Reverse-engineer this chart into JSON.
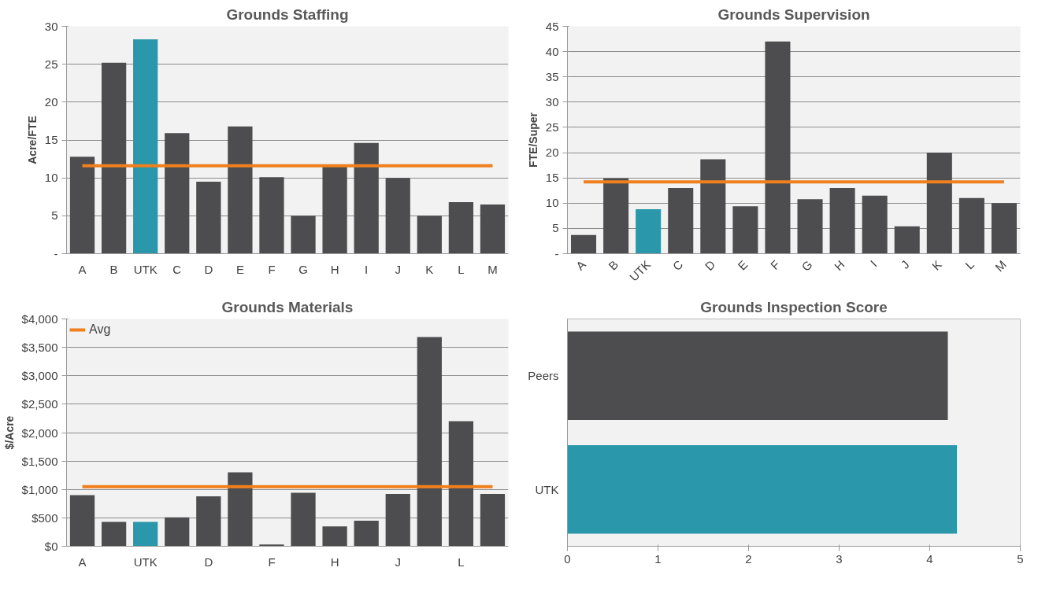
{
  "chart_data": [
    {
      "type": "bar",
      "title": "Grounds Staffing",
      "ylabel": "Acre/FTE",
      "categories": [
        "A",
        "B",
        "UTK",
        "C",
        "D",
        "E",
        "F",
        "G",
        "H",
        "I",
        "J",
        "K",
        "L",
        "M"
      ],
      "values": [
        12.8,
        25.2,
        28.3,
        15.9,
        9.5,
        16.8,
        10.1,
        5,
        11.5,
        14.6,
        10,
        5,
        6.8,
        6.5
      ],
      "colors": [
        "#4d4d4f",
        "#4d4d4f",
        "#2a97aa",
        "#4d4d4f",
        "#4d4d4f",
        "#4d4d4f",
        "#4d4d4f",
        "#4d4d4f",
        "#4d4d4f",
        "#4d4d4f",
        "#4d4d4f",
        "#4d4d4f",
        "#4d4d4f",
        "#4d4d4f"
      ],
      "ylim": [
        0,
        30
      ],
      "yticks": [
        {
          "value": 0,
          "label": "-"
        },
        5,
        10,
        15,
        20,
        25,
        30
      ],
      "grid": "y",
      "ref_lines": [
        {
          "axis": "y",
          "value": 11.6,
          "color": "#f07f1e"
        }
      ]
    },
    {
      "type": "bar",
      "title": "Grounds Supervision",
      "ylabel": "FTE/Super",
      "categories": [
        "A",
        "B",
        "UTK",
        "C",
        "D",
        "E",
        "F",
        "G",
        "H",
        "I",
        "J",
        "K",
        "L",
        "M"
      ],
      "values": [
        3.7,
        14.9,
        8.8,
        13,
        18.7,
        9.4,
        42,
        10.8,
        13,
        11.5,
        5.4,
        20,
        11,
        10
      ],
      "colors": [
        "#4d4d4f",
        "#4d4d4f",
        "#2a97aa",
        "#4d4d4f",
        "#4d4d4f",
        "#4d4d4f",
        "#4d4d4f",
        "#4d4d4f",
        "#4d4d4f",
        "#4d4d4f",
        "#4d4d4f",
        "#4d4d4f",
        "#4d4d4f",
        "#4d4d4f"
      ],
      "ylim": [
        0,
        45
      ],
      "yticks": [
        {
          "value": 0,
          "label": "-"
        },
        5,
        10,
        15,
        20,
        25,
        30,
        35,
        40,
        45
      ],
      "grid": "y",
      "ref_lines": [
        {
          "axis": "y",
          "value": 14.2,
          "color": "#f07f1e"
        }
      ]
    },
    {
      "type": "bar",
      "title": "Grounds Materials",
      "ylabel": "$/Acre",
      "categories": [
        "A",
        null,
        "UTK",
        null,
        "D",
        null,
        "F",
        null,
        "H",
        null,
        "J",
        null,
        "L",
        null
      ],
      "values": [
        900,
        430,
        430,
        510,
        880,
        1300,
        30,
        940,
        350,
        450,
        920,
        3680,
        2200,
        920
      ],
      "colors": [
        "#4d4d4f",
        "#4d4d4f",
        "#2a97aa",
        "#4d4d4f",
        "#4d4d4f",
        "#4d4d4f",
        "#4d4d4f",
        "#4d4d4f",
        "#4d4d4f",
        "#4d4d4f",
        "#4d4d4f",
        "#4d4d4f",
        "#4d4d4f",
        "#4d4d4f"
      ],
      "ylim": [
        0,
        4000
      ],
      "yticks": [
        {
          "value": 0,
          "label": "$0"
        },
        {
          "value": 500,
          "label": "$500"
        },
        {
          "value": 1000,
          "label": "$1,000"
        },
        {
          "value": 1500,
          "label": "$1,500"
        },
        {
          "value": 2000,
          "label": "$2,000"
        },
        {
          "value": 2500,
          "label": "$2,500"
        },
        {
          "value": 3000,
          "label": "$3,000"
        },
        {
          "value": 3500,
          "label": "$3,500"
        },
        {
          "value": 4000,
          "label": "$4,000"
        }
      ],
      "grid": "y",
      "ref_lines": [
        {
          "axis": "y",
          "value": 1050,
          "label": "Avg",
          "color": "#f07f1e"
        }
      ],
      "legend": "top left"
    },
    {
      "type": "bar",
      "title": "Grounds Inspection Score",
      "orientation": "horizontal",
      "categories": [
        "Peers",
        "UTK"
      ],
      "values": [
        4.2,
        4.3
      ],
      "colors": [
        "#4d4d4f",
        "#2a97aa"
      ],
      "xlim": [
        0,
        5
      ],
      "xticks": [
        0,
        1,
        2,
        3,
        4,
        5
      ]
    }
  ]
}
